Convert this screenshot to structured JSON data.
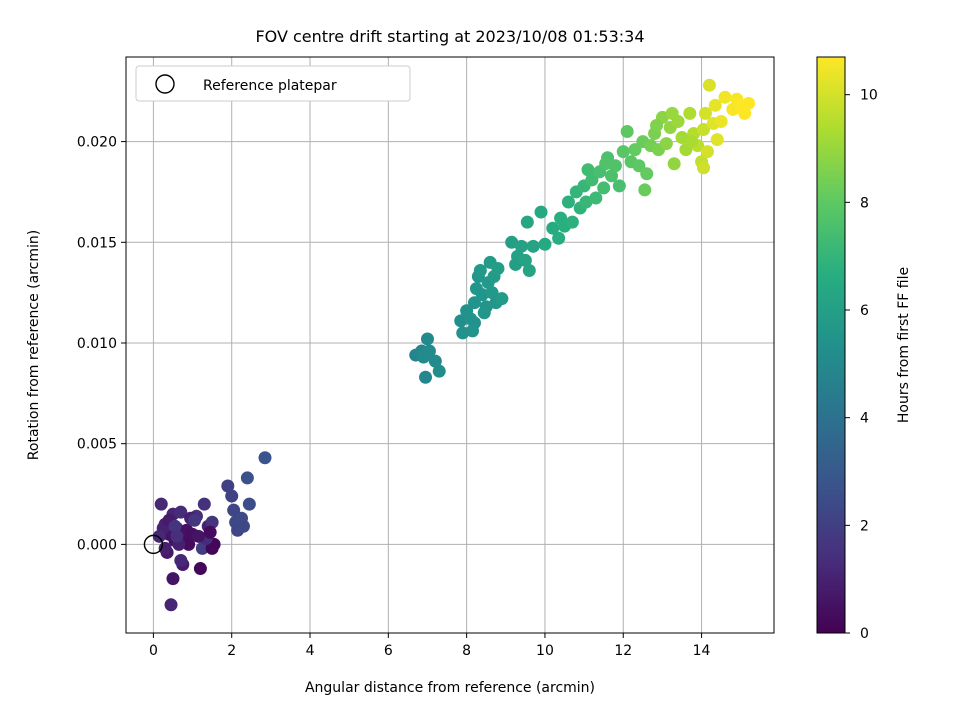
{
  "chart_data": {
    "type": "scatter",
    "title": "FOV centre drift starting at 2023/10/08 01:53:34",
    "xlabel": "Angular distance from reference (arcmin)",
    "ylabel": "Rotation from reference (arcmin)",
    "xlim": [
      -0.7,
      15.85
    ],
    "ylim": [
      -0.0044,
      0.0242
    ],
    "xticks": [
      "0",
      "2",
      "4",
      "6",
      "8",
      "10",
      "12",
      "14"
    ],
    "yticks": [
      "0.000",
      "0.005",
      "0.010",
      "0.015",
      "0.020"
    ],
    "grid": true,
    "legend": {
      "placement": "top-left",
      "entries": [
        "Reference platepar"
      ]
    },
    "reference_point": {
      "x": 0.0,
      "y": 0.0
    },
    "colorbar": {
      "label": "Hours from first FF file",
      "range": [
        0,
        10.7
      ],
      "ticks": [
        "0",
        "2",
        "4",
        "6",
        "8",
        "10"
      ],
      "colormap": "viridis"
    },
    "series": [
      {
        "points": [
          [
            0.2,
            0.002,
            1.2
          ],
          [
            0.3,
            0.001,
            0.9
          ],
          [
            0.4,
            0.0005,
            0.6
          ],
          [
            0.35,
            -0.0004,
            0.7
          ],
          [
            0.5,
            0.0015,
            1.1
          ],
          [
            0.55,
            0.0002,
            0.5
          ],
          [
            0.6,
            0.0008,
            1.0
          ],
          [
            0.7,
            0.0016,
            1.3
          ],
          [
            0.75,
            -0.001,
            0.8
          ],
          [
            0.5,
            -0.0017,
            0.6
          ],
          [
            0.45,
            -0.003,
            1.1
          ],
          [
            0.8,
            0.0003,
            0.4
          ],
          [
            0.9,
            0.0,
            0.3
          ],
          [
            0.25,
            0.0008,
            1.0
          ],
          [
            0.15,
            0.0004,
            1.2
          ],
          [
            0.65,
            0.0,
            0.9
          ],
          [
            0.85,
            0.0007,
            0.5
          ],
          [
            1.0,
            0.0005,
            0.4
          ],
          [
            1.1,
            0.0014,
            1.4
          ],
          [
            1.2,
            -0.0012,
            0.2
          ],
          [
            1.3,
            0.002,
            1.5
          ],
          [
            1.25,
            -0.0002,
            1.9
          ],
          [
            1.4,
            0.0009,
            1.0
          ],
          [
            1.5,
            0.0011,
            1.6
          ],
          [
            1.5,
            -0.0002,
            0.1
          ],
          [
            1.55,
            0.0,
            0.2
          ],
          [
            1.35,
            0.0003,
            1.3
          ],
          [
            0.95,
            0.0013,
            0.9
          ],
          [
            0.4,
            0.0012,
            0.8
          ],
          [
            0.55,
            0.0009,
            1.6
          ],
          [
            0.3,
            -0.0002,
            0.9
          ],
          [
            0.7,
            -0.0008,
            1.2
          ],
          [
            1.15,
            0.0004,
            0.6
          ],
          [
            1.45,
            0.0006,
            0.3
          ],
          [
            0.6,
            0.0004,
            1.4
          ],
          [
            1.05,
            0.0012,
            1.7
          ],
          [
            1.9,
            0.0029,
            2.0
          ],
          [
            2.0,
            0.0024,
            2.1
          ],
          [
            2.05,
            0.0017,
            2.2
          ],
          [
            2.1,
            0.0011,
            2.3
          ],
          [
            2.15,
            0.0007,
            2.2
          ],
          [
            2.25,
            0.0013,
            2.4
          ],
          [
            2.3,
            0.0009,
            2.3
          ],
          [
            2.4,
            0.0033,
            2.6
          ],
          [
            2.45,
            0.002,
            2.5
          ],
          [
            2.85,
            0.0043,
            2.8
          ],
          [
            6.7,
            0.0094,
            4.8
          ],
          [
            6.85,
            0.0096,
            4.9
          ],
          [
            6.9,
            0.0093,
            5.0
          ],
          [
            7.0,
            0.0102,
            5.0
          ],
          [
            6.95,
            0.0083,
            4.9
          ],
          [
            7.05,
            0.0096,
            5.1
          ],
          [
            7.2,
            0.0091,
            5.1
          ],
          [
            7.3,
            0.0086,
            5.2
          ],
          [
            7.9,
            0.0105,
            5.4
          ],
          [
            7.85,
            0.0111,
            5.3
          ],
          [
            8.0,
            0.0116,
            5.4
          ],
          [
            8.1,
            0.0112,
            5.5
          ],
          [
            8.2,
            0.012,
            5.5
          ],
          [
            8.25,
            0.0127,
            5.6
          ],
          [
            8.3,
            0.0133,
            5.6
          ],
          [
            8.35,
            0.0136,
            5.7
          ],
          [
            8.4,
            0.0124,
            5.6
          ],
          [
            8.5,
            0.0118,
            5.5
          ],
          [
            8.55,
            0.013,
            5.7
          ],
          [
            8.6,
            0.014,
            5.8
          ],
          [
            8.65,
            0.0125,
            5.7
          ],
          [
            8.7,
            0.0133,
            5.8
          ],
          [
            8.75,
            0.012,
            5.6
          ],
          [
            8.8,
            0.0137,
            5.9
          ],
          [
            8.2,
            0.011,
            5.4
          ],
          [
            8.15,
            0.0106,
            5.5
          ],
          [
            8.45,
            0.0115,
            5.6
          ],
          [
            8.9,
            0.0122,
            5.8
          ],
          [
            9.15,
            0.015,
            6.0
          ],
          [
            9.3,
            0.0143,
            6.1
          ],
          [
            9.25,
            0.0139,
            6.0
          ],
          [
            9.4,
            0.0148,
            6.1
          ],
          [
            9.5,
            0.0141,
            6.2
          ],
          [
            9.6,
            0.0136,
            6.2
          ],
          [
            9.55,
            0.016,
            6.3
          ],
          [
            9.7,
            0.0148,
            6.2
          ],
          [
            9.9,
            0.0165,
            6.4
          ],
          [
            10.0,
            0.0149,
            6.4
          ],
          [
            10.2,
            0.0157,
            6.5
          ],
          [
            10.35,
            0.0152,
            6.6
          ],
          [
            10.4,
            0.0162,
            6.7
          ],
          [
            10.5,
            0.0158,
            6.7
          ],
          [
            10.6,
            0.017,
            6.8
          ],
          [
            10.7,
            0.016,
            6.8
          ],
          [
            10.8,
            0.0175,
            7.0
          ],
          [
            10.9,
            0.0167,
            6.9
          ],
          [
            11.0,
            0.0178,
            7.1
          ],
          [
            11.05,
            0.017,
            7.1
          ],
          [
            11.1,
            0.0186,
            7.3
          ],
          [
            11.2,
            0.0181,
            7.3
          ],
          [
            11.3,
            0.0172,
            7.2
          ],
          [
            11.4,
            0.0185,
            7.5
          ],
          [
            11.5,
            0.0177,
            7.4
          ],
          [
            11.6,
            0.0192,
            7.6
          ],
          [
            11.7,
            0.0183,
            7.6
          ],
          [
            11.8,
            0.0188,
            7.7
          ],
          [
            11.9,
            0.0178,
            7.5
          ],
          [
            12.0,
            0.0195,
            7.9
          ],
          [
            12.1,
            0.0205,
            8.0
          ],
          [
            12.2,
            0.019,
            7.9
          ],
          [
            12.3,
            0.0196,
            8.1
          ],
          [
            12.4,
            0.0188,
            8.0
          ],
          [
            12.5,
            0.02,
            8.2
          ],
          [
            12.6,
            0.0184,
            8.1
          ],
          [
            12.55,
            0.0176,
            8.2
          ],
          [
            12.7,
            0.0198,
            8.4
          ],
          [
            12.8,
            0.0204,
            8.5
          ],
          [
            12.9,
            0.0196,
            8.5
          ],
          [
            13.0,
            0.0212,
            8.8
          ],
          [
            13.1,
            0.0199,
            8.8
          ],
          [
            13.2,
            0.0207,
            8.9
          ],
          [
            13.3,
            0.0189,
            8.9
          ],
          [
            13.4,
            0.021,
            9.1
          ],
          [
            13.5,
            0.0202,
            9.2
          ],
          [
            13.6,
            0.0196,
            9.2
          ],
          [
            13.7,
            0.0214,
            9.4
          ],
          [
            13.8,
            0.0204,
            9.5
          ],
          [
            13.9,
            0.0198,
            9.6
          ],
          [
            14.0,
            0.019,
            9.7
          ],
          [
            14.05,
            0.0206,
            9.8
          ],
          [
            14.1,
            0.0214,
            10.0
          ],
          [
            14.15,
            0.0195,
            10.0
          ],
          [
            14.2,
            0.0228,
            10.1
          ],
          [
            14.3,
            0.0209,
            10.2
          ],
          [
            14.35,
            0.0218,
            10.3
          ],
          [
            14.4,
            0.0201,
            10.2
          ],
          [
            14.5,
            0.021,
            10.4
          ],
          [
            14.6,
            0.0222,
            10.5
          ],
          [
            14.8,
            0.0216,
            10.6
          ],
          [
            14.9,
            0.0221,
            10.6
          ],
          [
            15.0,
            0.0218,
            10.7
          ],
          [
            15.1,
            0.0214,
            10.7
          ],
          [
            15.2,
            0.0219,
            10.7
          ],
          [
            13.25,
            0.0214,
            9.0
          ],
          [
            12.85,
            0.0208,
            8.6
          ],
          [
            11.55,
            0.0189,
            7.7
          ],
          [
            14.05,
            0.0187,
            9.9
          ],
          [
            13.75,
            0.02,
            9.3
          ]
        ]
      }
    ]
  }
}
